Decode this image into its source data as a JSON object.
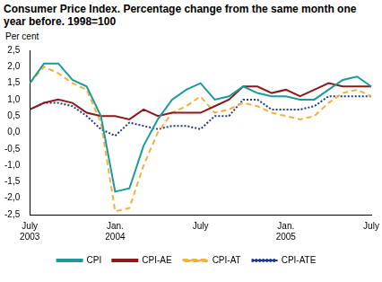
{
  "chart_data": {
    "type": "line",
    "title": "Consumer Price Index. Percentage change from the same month one year before. 1998=100",
    "y_label": "Per cent",
    "categories": [
      "July 2003",
      null,
      null,
      null,
      null,
      null,
      "Jan. 2004",
      null,
      null,
      null,
      null,
      null,
      "July",
      null,
      null,
      null,
      null,
      null,
      "Jan. 2005",
      null,
      null,
      null,
      null,
      null,
      "July"
    ],
    "series": [
      {
        "name": "CPI",
        "color": "#1a9a9a",
        "line_style": "solid",
        "values": [
          1.5,
          2.1,
          2.1,
          1.6,
          1.4,
          0.5,
          -1.8,
          -1.7,
          -0.4,
          0.4,
          1.0,
          1.3,
          1.5,
          1.0,
          1.1,
          1.4,
          1.2,
          1.1,
          1.1,
          1.0,
          1.0,
          1.3,
          1.6,
          1.7,
          1.4
        ]
      },
      {
        "name": "CPI-AE",
        "color": "#8b1a1a",
        "line_style": "solid",
        "values": [
          0.7,
          0.9,
          1.0,
          0.9,
          0.6,
          0.5,
          0.5,
          0.4,
          0.7,
          0.5,
          0.6,
          0.6,
          0.6,
          0.8,
          1.0,
          1.4,
          1.4,
          1.2,
          1.3,
          1.1,
          1.3,
          1.5,
          1.4,
          1.4,
          1.4
        ]
      },
      {
        "name": "CPI-AT",
        "color": "#f5b03c",
        "line_style": "dashed",
        "values": [
          1.5,
          2.0,
          1.8,
          1.5,
          1.3,
          0.3,
          -2.4,
          -2.3,
          -1.0,
          0.0,
          0.6,
          0.8,
          1.1,
          0.6,
          0.7,
          0.9,
          0.8,
          0.6,
          0.5,
          0.4,
          0.5,
          0.9,
          1.2,
          1.3,
          1.1
        ]
      },
      {
        "name": "CPI-ATE",
        "color": "#1f3a8a",
        "line_style": "dotted",
        "values": [
          0.7,
          0.9,
          0.9,
          0.8,
          0.5,
          0.1,
          -0.1,
          0.3,
          0.2,
          0.1,
          0.2,
          0.2,
          0.1,
          0.5,
          0.5,
          1.0,
          1.0,
          0.7,
          0.7,
          0.7,
          0.8,
          1.1,
          1.1,
          1.1,
          1.1
        ]
      }
    ],
    "ylim": [
      -2.5,
      2.5
    ],
    "yticks": [
      {
        "value": -2.5,
        "label": "-2,5"
      },
      {
        "value": -2.0,
        "label": "-2,0"
      },
      {
        "value": -1.5,
        "label": "-1,5"
      },
      {
        "value": -1.0,
        "label": "-1,0"
      },
      {
        "value": -0.5,
        "label": "-0,5"
      },
      {
        "value": 0.0,
        "label": "0,0"
      },
      {
        "value": 0.5,
        "label": "0,5"
      },
      {
        "value": 1.0,
        "label": "1,0"
      },
      {
        "value": 1.5,
        "label": "1,5"
      },
      {
        "value": 2.0,
        "label": "2,0"
      },
      {
        "value": 2.5,
        "label": "2,5"
      }
    ],
    "grid": false,
    "legend": "bottom"
  }
}
